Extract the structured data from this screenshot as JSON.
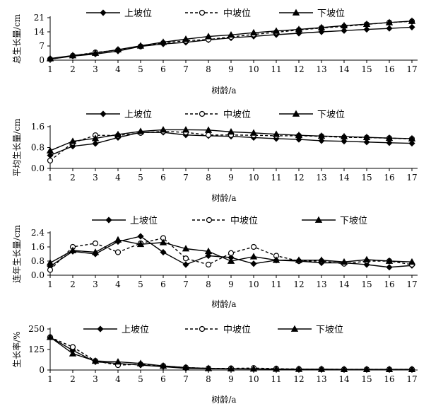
{
  "chart_data": [
    {
      "type": "line",
      "ylabel": "总生长量/cm",
      "xlabel": "树龄/a",
      "x": [
        1,
        2,
        3,
        4,
        5,
        6,
        7,
        8,
        9,
        10,
        11,
        12,
        13,
        14,
        15,
        16,
        17
      ],
      "ylim": [
        0,
        21
      ],
      "yticks": [
        "0",
        "7",
        "14",
        "21"
      ],
      "series": [
        {
          "name": "上坡位",
          "style": "solid",
          "marker": "diamond",
          "values": [
            0.5,
            2.0,
            3.0,
            4.5,
            6.8,
            8.0,
            8.8,
            10.0,
            11.0,
            11.8,
            12.6,
            13.3,
            14.0,
            14.6,
            15.2,
            15.7,
            16.3
          ]
        },
        {
          "name": "中坡位",
          "style": "dashed",
          "marker": "circle",
          "values": [
            0.5,
            2.2,
            3.8,
            5.0,
            6.8,
            8.5,
            9.6,
            10.2,
            11.5,
            12.7,
            13.8,
            14.9,
            15.9,
            16.7,
            17.7,
            18.6,
            19.2
          ]
        },
        {
          "name": "下坡位",
          "style": "solid",
          "marker": "triangle",
          "values": [
            0.8,
            2.3,
            3.5,
            5.2,
            7.1,
            8.9,
            10.4,
            11.7,
            12.5,
            13.6,
            14.4,
            15.2,
            16.1,
            17.1,
            17.8,
            18.6,
            19.3
          ]
        }
      ]
    },
    {
      "type": "line",
      "ylabel": "平均生长量/cm",
      "xlabel": "树龄/a",
      "x": [
        1,
        2,
        3,
        4,
        5,
        6,
        7,
        8,
        9,
        10,
        11,
        12,
        13,
        14,
        15,
        16,
        17
      ],
      "ylim": [
        0,
        1.6
      ],
      "yticks": [
        "0.0",
        "0.8",
        "1.6"
      ],
      "series": [
        {
          "name": "上坡位",
          "style": "solid",
          "marker": "diamond",
          "values": [
            0.5,
            0.85,
            0.95,
            1.18,
            1.38,
            1.38,
            1.28,
            1.25,
            1.23,
            1.18,
            1.14,
            1.11,
            1.06,
            1.04,
            1.01,
            0.98,
            0.96
          ]
        },
        {
          "name": "中坡位",
          "style": "dashed",
          "marker": "circle",
          "values": [
            0.3,
            0.98,
            1.27,
            1.26,
            1.36,
            1.42,
            1.38,
            1.28,
            1.28,
            1.27,
            1.25,
            1.25,
            1.23,
            1.19,
            1.18,
            1.16,
            1.13
          ]
        },
        {
          "name": "下坡位",
          "style": "solid",
          "marker": "triangle",
          "values": [
            0.68,
            1.04,
            1.15,
            1.3,
            1.42,
            1.48,
            1.48,
            1.47,
            1.4,
            1.36,
            1.31,
            1.27,
            1.24,
            1.22,
            1.19,
            1.16,
            1.14
          ]
        }
      ]
    },
    {
      "type": "line",
      "ylabel": "连年生长量/cm",
      "xlabel": "树龄/a",
      "x": [
        1,
        2,
        3,
        4,
        5,
        6,
        7,
        8,
        9,
        10,
        11,
        12,
        13,
        14,
        15,
        16,
        17
      ],
      "ylim": [
        0,
        2.4
      ],
      "yticks": [
        "0.0",
        "0.8",
        "1.6",
        "2.4"
      ],
      "series": [
        {
          "name": "上坡位",
          "style": "solid",
          "marker": "diamond",
          "values": [
            0.5,
            1.35,
            1.2,
            1.9,
            2.2,
            1.3,
            0.6,
            1.1,
            1.0,
            0.65,
            0.85,
            0.8,
            0.7,
            0.7,
            0.6,
            0.45,
            0.55
          ]
        },
        {
          "name": "中坡位",
          "style": "dashed",
          "marker": "circle",
          "values": [
            0.3,
            1.6,
            1.8,
            1.3,
            1.8,
            2.1,
            0.95,
            0.6,
            1.25,
            1.6,
            1.1,
            0.8,
            0.8,
            0.65,
            0.8,
            0.8,
            0.6
          ]
        },
        {
          "name": "下坡位",
          "style": "solid",
          "marker": "triangle",
          "values": [
            0.7,
            1.4,
            1.3,
            2.0,
            1.75,
            1.85,
            1.5,
            1.35,
            0.8,
            1.05,
            0.85,
            0.85,
            0.85,
            0.75,
            0.88,
            0.8,
            0.75
          ]
        }
      ]
    },
    {
      "type": "line",
      "ylabel": "生长率/%",
      "xlabel": "树龄/a",
      "x": [
        1,
        2,
        3,
        4,
        5,
        6,
        7,
        8,
        9,
        10,
        11,
        12,
        13,
        14,
        15,
        16,
        17
      ],
      "ylim": [
        0,
        250
      ],
      "yticks": [
        "0",
        "125",
        "250"
      ],
      "series": [
        {
          "name": "上坡位",
          "style": "solid",
          "marker": "diamond",
          "values": [
            200,
            120,
            50,
            40,
            30,
            20,
            10,
            8,
            7,
            6,
            5,
            4,
            4,
            3,
            3,
            3,
            3
          ]
        },
        {
          "name": "中坡位",
          "style": "dashed",
          "marker": "circle",
          "values": [
            200,
            140,
            55,
            30,
            35,
            25,
            15,
            10,
            10,
            12,
            8,
            6,
            5,
            4,
            4,
            4,
            4
          ]
        },
        {
          "name": "下坡位",
          "style": "solid",
          "marker": "triangle",
          "values": [
            200,
            100,
            55,
            50,
            40,
            25,
            15,
            10,
            8,
            7,
            6,
            5,
            5,
            4,
            4,
            4,
            4
          ]
        }
      ]
    }
  ]
}
